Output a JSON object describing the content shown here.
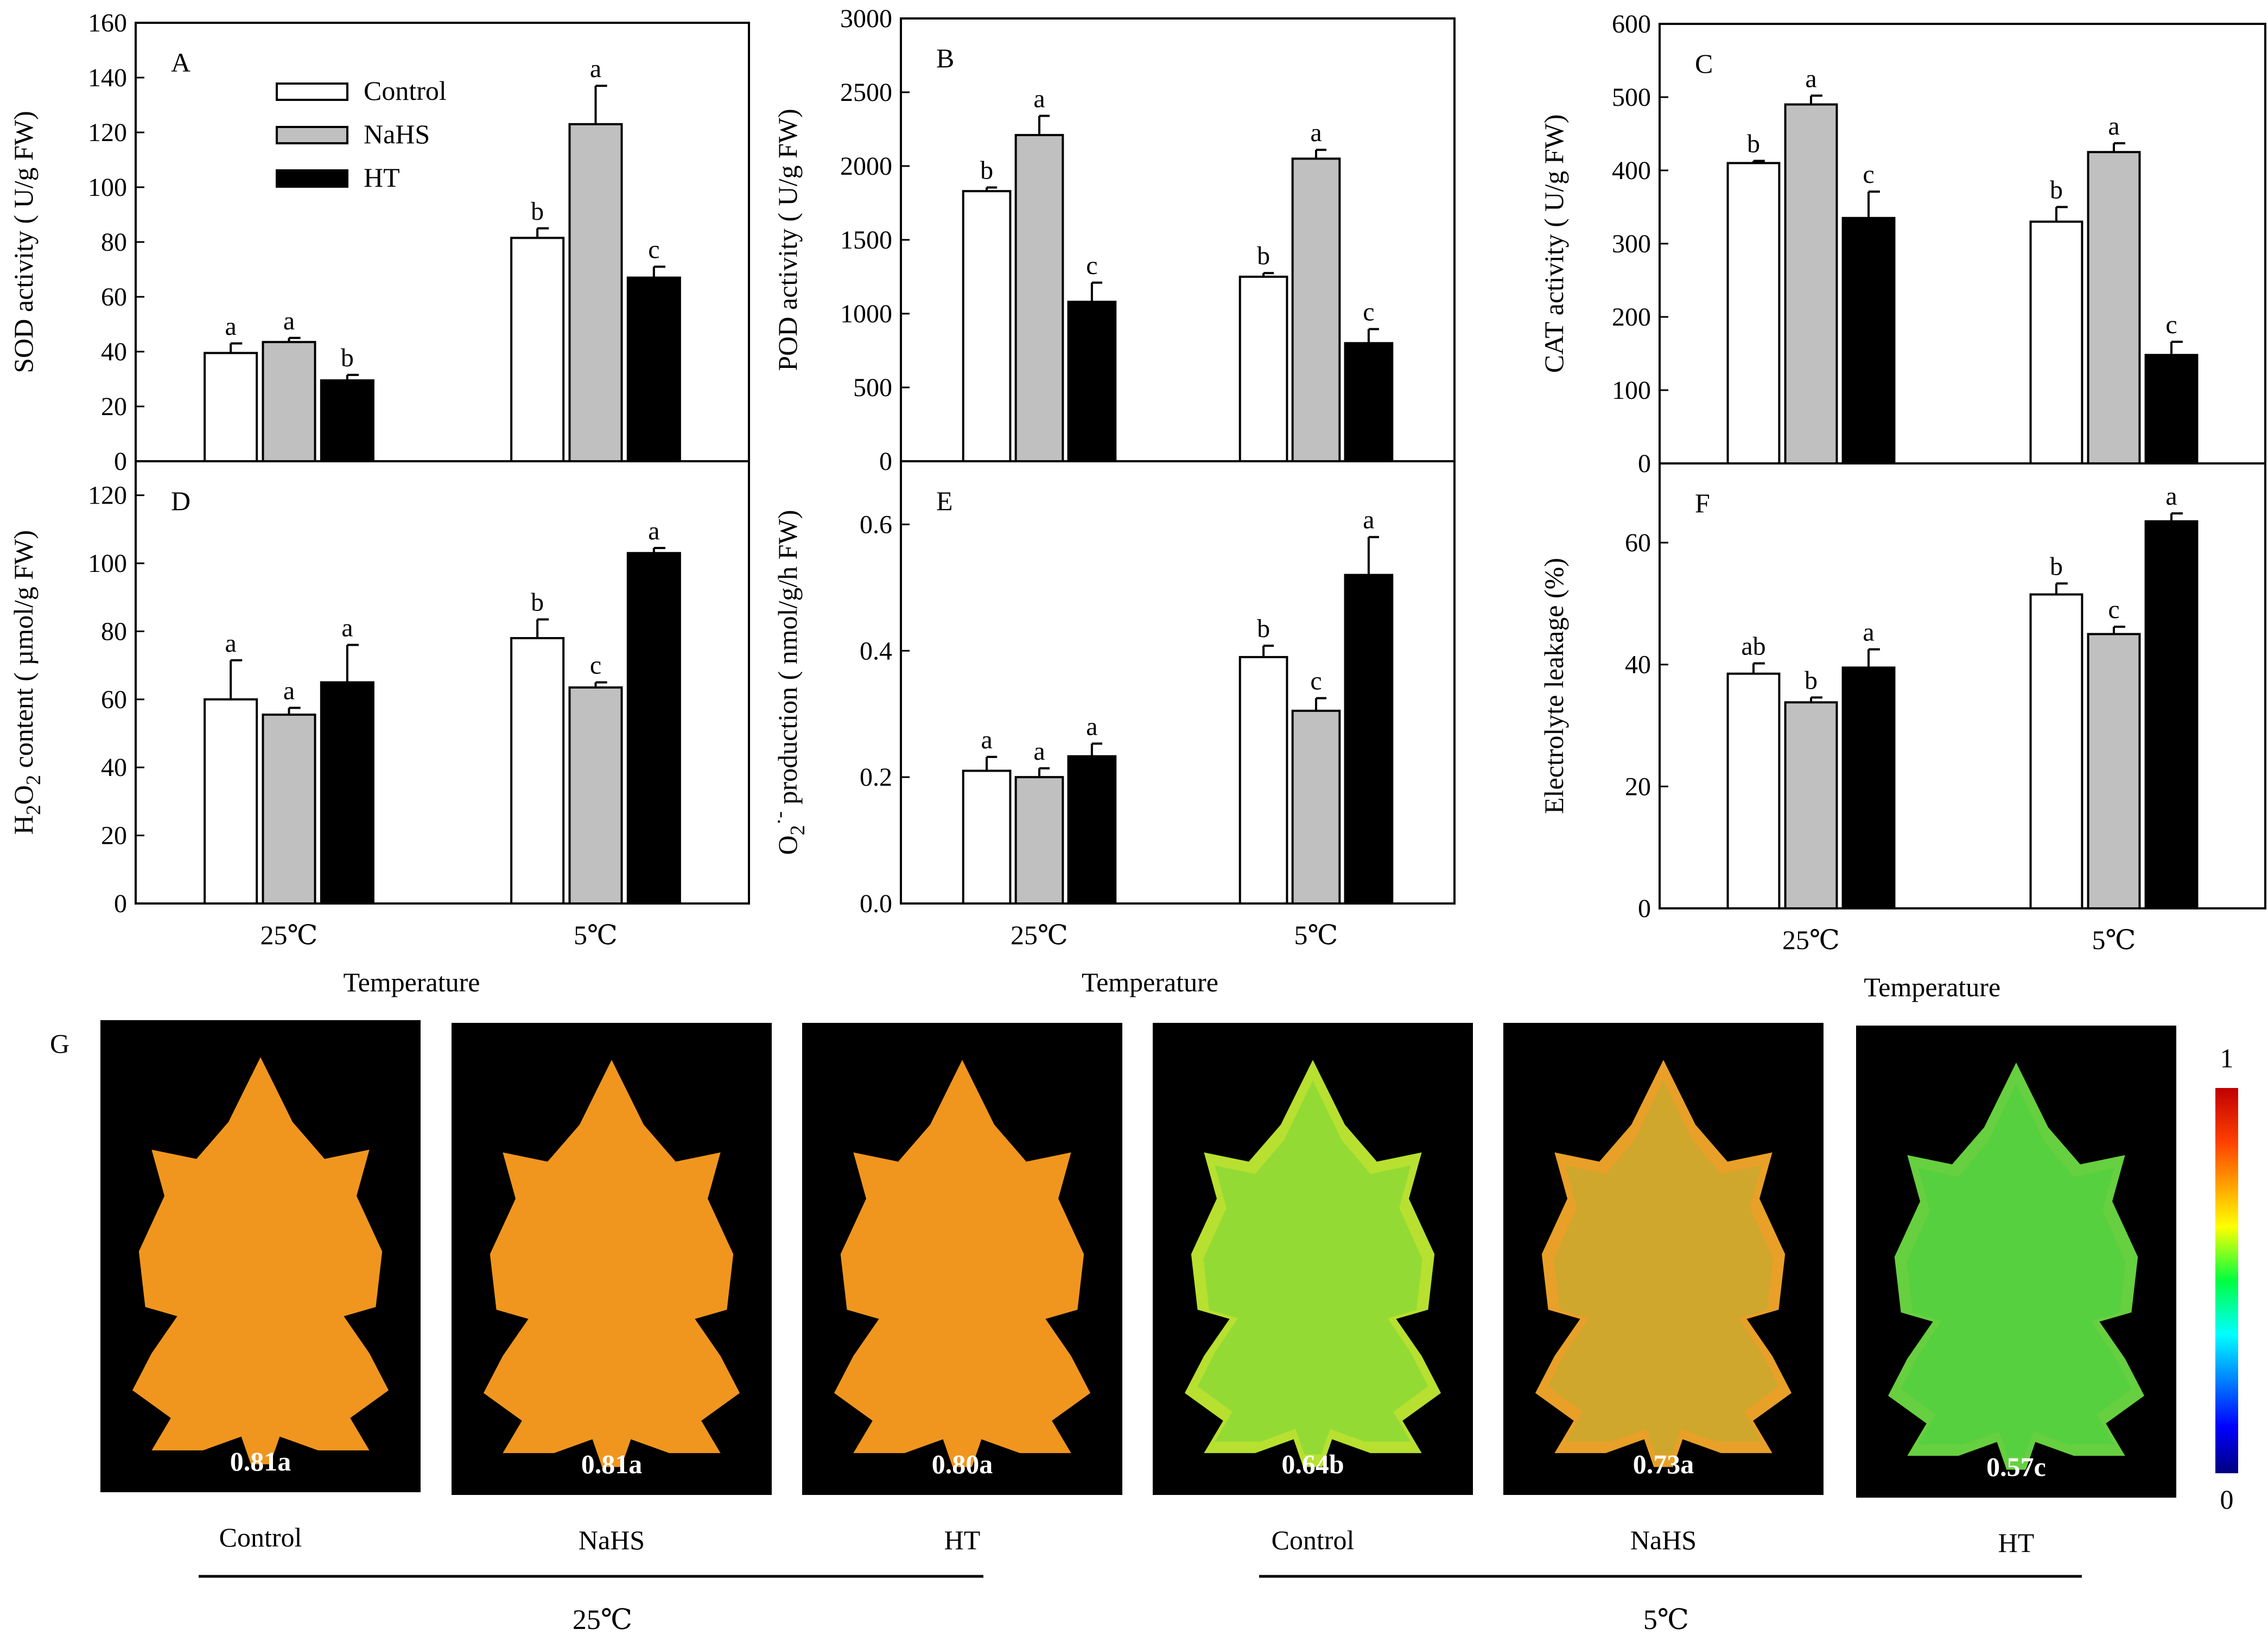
{
  "figure": {
    "panels": [
      {
        "id": "A",
        "panel_label": "A",
        "ylabel": "SOD activity ( U/g FW)",
        "ylabel_sub": "",
        "xlabel": "",
        "show_xticks": false,
        "yticks": [
          "0",
          "20",
          "40",
          "60",
          "80",
          "100",
          "120",
          "140",
          "160"
        ],
        "show_legend": true
      },
      {
        "id": "B",
        "panel_label": "B",
        "ylabel": "POD activity (  U/g  FW)",
        "ylabel_sub": "",
        "xlabel": "",
        "show_xticks": false,
        "yticks": [
          "0",
          "500",
          "1000",
          "1500",
          "2000",
          "2500",
          "3000"
        ],
        "show_legend": false
      },
      {
        "id": "C",
        "panel_label": "C",
        "ylabel": "CAT activity (  U/g FW)",
        "ylabel_sub": "",
        "xlabel": "",
        "show_xticks": false,
        "yticks": [
          "0",
          "100",
          "200",
          "300",
          "400",
          "500",
          "600"
        ],
        "show_legend": false
      },
      {
        "id": "D",
        "panel_label": "D",
        "ylabel_pre": "H",
        "ylabel_sub1": "2",
        "ylabel_mid": "O",
        "ylabel_sub2": "2",
        "ylabel_post": " content ( µmol/g FW)",
        "xlabel": "Temperature",
        "show_xticks": true,
        "yticks": [
          "0",
          "20",
          "40",
          "60",
          "80",
          "100",
          "120"
        ],
        "show_legend": false
      },
      {
        "id": "E",
        "panel_label": "E",
        "ylabel_pre": "O",
        "ylabel_sub1": "2",
        "ylabel_sup": "·-",
        "ylabel_post": "  production ( nmol/g/h FW)",
        "xlabel": "Temperature",
        "show_xticks": true,
        "yticks": [
          "0.0",
          "0.2",
          "0.4",
          "0.6"
        ],
        "show_legend": false
      },
      {
        "id": "F",
        "panel_label": "F",
        "ylabel": "Electrolyte leakage (%)",
        "xlabel": "Temperature",
        "show_xticks": true,
        "yticks": [
          "0",
          "20",
          "40",
          "60"
        ],
        "show_legend": false
      }
    ],
    "xtick_labels": [
      "25℃",
      "5℃"
    ],
    "legend": [
      "Control",
      "NaHS",
      "HT"
    ],
    "colors": {
      "Control": "#ffffff",
      "NaHS": "#c0c0c0",
      "HT": "#000000",
      "bar_edge": "#000000"
    },
    "imaging": {
      "panel_label": "G",
      "scale_max": "1",
      "scale_min": "0",
      "colormap": "jet",
      "leaves": [
        {
          "value_label": "0.81a",
          "caption": "Control",
          "fill": "#f0961e",
          "green_mix": 0
        },
        {
          "value_label": "0.81a",
          "caption": "NaHS",
          "fill": "#f0961e",
          "green_mix": 0
        },
        {
          "value_label": "0.80a",
          "caption": "HT",
          "fill": "#f0961e",
          "green_mix": 0
        },
        {
          "value_label": "0.64b",
          "caption": "Control",
          "fill": "#b8e030",
          "green_mix": 0.6
        },
        {
          "value_label": "0.73a",
          "caption": "NaHS",
          "fill": "#e8a028",
          "green_mix": 0.3
        },
        {
          "value_label": "0.57c",
          "caption": "HT",
          "fill": "#66d040",
          "green_mix": 0.8
        }
      ],
      "groups": [
        "25℃",
        "5℃"
      ]
    }
  },
  "chart_data": [
    {
      "type": "bar",
      "panel": "A",
      "categories": [
        "25℃",
        "5℃"
      ],
      "ylabel": "SOD activity ( U/g FW)",
      "ylim": [
        0,
        160
      ],
      "series": [
        {
          "name": "Control",
          "values": [
            39.5,
            81.5
          ],
          "errors": [
            3.5,
            3.5
          ],
          "letters": [
            "a",
            "b"
          ]
        },
        {
          "name": "NaHS",
          "values": [
            43.5,
            123
          ],
          "errors": [
            1.5,
            14
          ],
          "letters": [
            "a",
            "a"
          ]
        },
        {
          "name": "HT",
          "values": [
            29.5,
            67
          ],
          "errors": [
            2,
            4
          ],
          "letters": [
            "b",
            "c"
          ]
        }
      ],
      "legend_placement": "top-left"
    },
    {
      "type": "bar",
      "panel": "B",
      "categories": [
        "25℃",
        "5℃"
      ],
      "ylabel": "POD activity (  U/g  FW)",
      "ylim": [
        0,
        3000
      ],
      "series": [
        {
          "name": "Control",
          "values": [
            1830,
            1250
          ],
          "errors": [
            25,
            25
          ],
          "letters": [
            "b",
            "b"
          ]
        },
        {
          "name": "NaHS",
          "values": [
            2210,
            2050
          ],
          "errors": [
            130,
            60
          ],
          "letters": [
            "a",
            "a"
          ]
        },
        {
          "name": "HT",
          "values": [
            1080,
            800
          ],
          "errors": [
            130,
            95
          ],
          "letters": [
            "c",
            "c"
          ]
        }
      ]
    },
    {
      "type": "bar",
      "panel": "C",
      "categories": [
        "25℃",
        "5℃"
      ],
      "ylabel": "CAT activity (  U/g FW)",
      "ylim": [
        0,
        600
      ],
      "series": [
        {
          "name": "Control",
          "values": [
            410,
            330
          ],
          "errors": [
            3,
            20
          ],
          "letters": [
            "b",
            "b"
          ]
        },
        {
          "name": "NaHS",
          "values": [
            490,
            425
          ],
          "errors": [
            12,
            12
          ],
          "letters": [
            "a",
            "a"
          ]
        },
        {
          "name": "HT",
          "values": [
            335,
            148
          ],
          "errors": [
            36,
            18
          ],
          "letters": [
            "c",
            "c"
          ]
        }
      ]
    },
    {
      "type": "bar",
      "panel": "D",
      "categories": [
        "25℃",
        "5℃"
      ],
      "xlabel": "Temperature",
      "ylabel": "H2O2 content ( µmol/g FW)",
      "ylim": [
        0,
        130
      ],
      "series": [
        {
          "name": "Control",
          "values": [
            60,
            78
          ],
          "errors": [
            11.5,
            5.5
          ],
          "letters": [
            "a",
            "b"
          ]
        },
        {
          "name": "NaHS",
          "values": [
            55.5,
            63.5
          ],
          "errors": [
            2,
            1.5
          ],
          "letters": [
            "a",
            "c"
          ]
        },
        {
          "name": "HT",
          "values": [
            65,
            103
          ],
          "errors": [
            11,
            1.5
          ],
          "letters": [
            "a",
            "a"
          ]
        }
      ]
    },
    {
      "type": "bar",
      "panel": "E",
      "categories": [
        "25℃",
        "5℃"
      ],
      "xlabel": "Temperature",
      "ylabel": "O2·- production ( nmol/g/h FW)",
      "ylim": [
        0,
        0.7
      ],
      "series": [
        {
          "name": "Control",
          "values": [
            0.21,
            0.39
          ],
          "errors": [
            0.022,
            0.018
          ],
          "letters": [
            "a",
            "b"
          ]
        },
        {
          "name": "NaHS",
          "values": [
            0.2,
            0.305
          ],
          "errors": [
            0.014,
            0.02
          ],
          "letters": [
            "a",
            "c"
          ]
        },
        {
          "name": "HT",
          "values": [
            0.233,
            0.52
          ],
          "errors": [
            0.02,
            0.06
          ],
          "letters": [
            "a",
            "a"
          ]
        }
      ]
    },
    {
      "type": "bar",
      "panel": "F",
      "categories": [
        "25℃",
        "5℃"
      ],
      "xlabel": "Temperature",
      "ylabel": "Electrolyte leakage (%)",
      "ylim": [
        0,
        73
      ],
      "series": [
        {
          "name": "Control",
          "values": [
            38.5,
            51.5
          ],
          "errors": [
            1.7,
            1.8
          ],
          "letters": [
            "ab",
            "b"
          ]
        },
        {
          "name": "NaHS",
          "values": [
            33.8,
            45
          ],
          "errors": [
            0.8,
            1.2
          ],
          "letters": [
            "b",
            "c"
          ]
        },
        {
          "name": "HT",
          "values": [
            39.5,
            63.5
          ],
          "errors": [
            3,
            1.3
          ],
          "letters": [
            "a",
            "a"
          ]
        }
      ]
    }
  ]
}
